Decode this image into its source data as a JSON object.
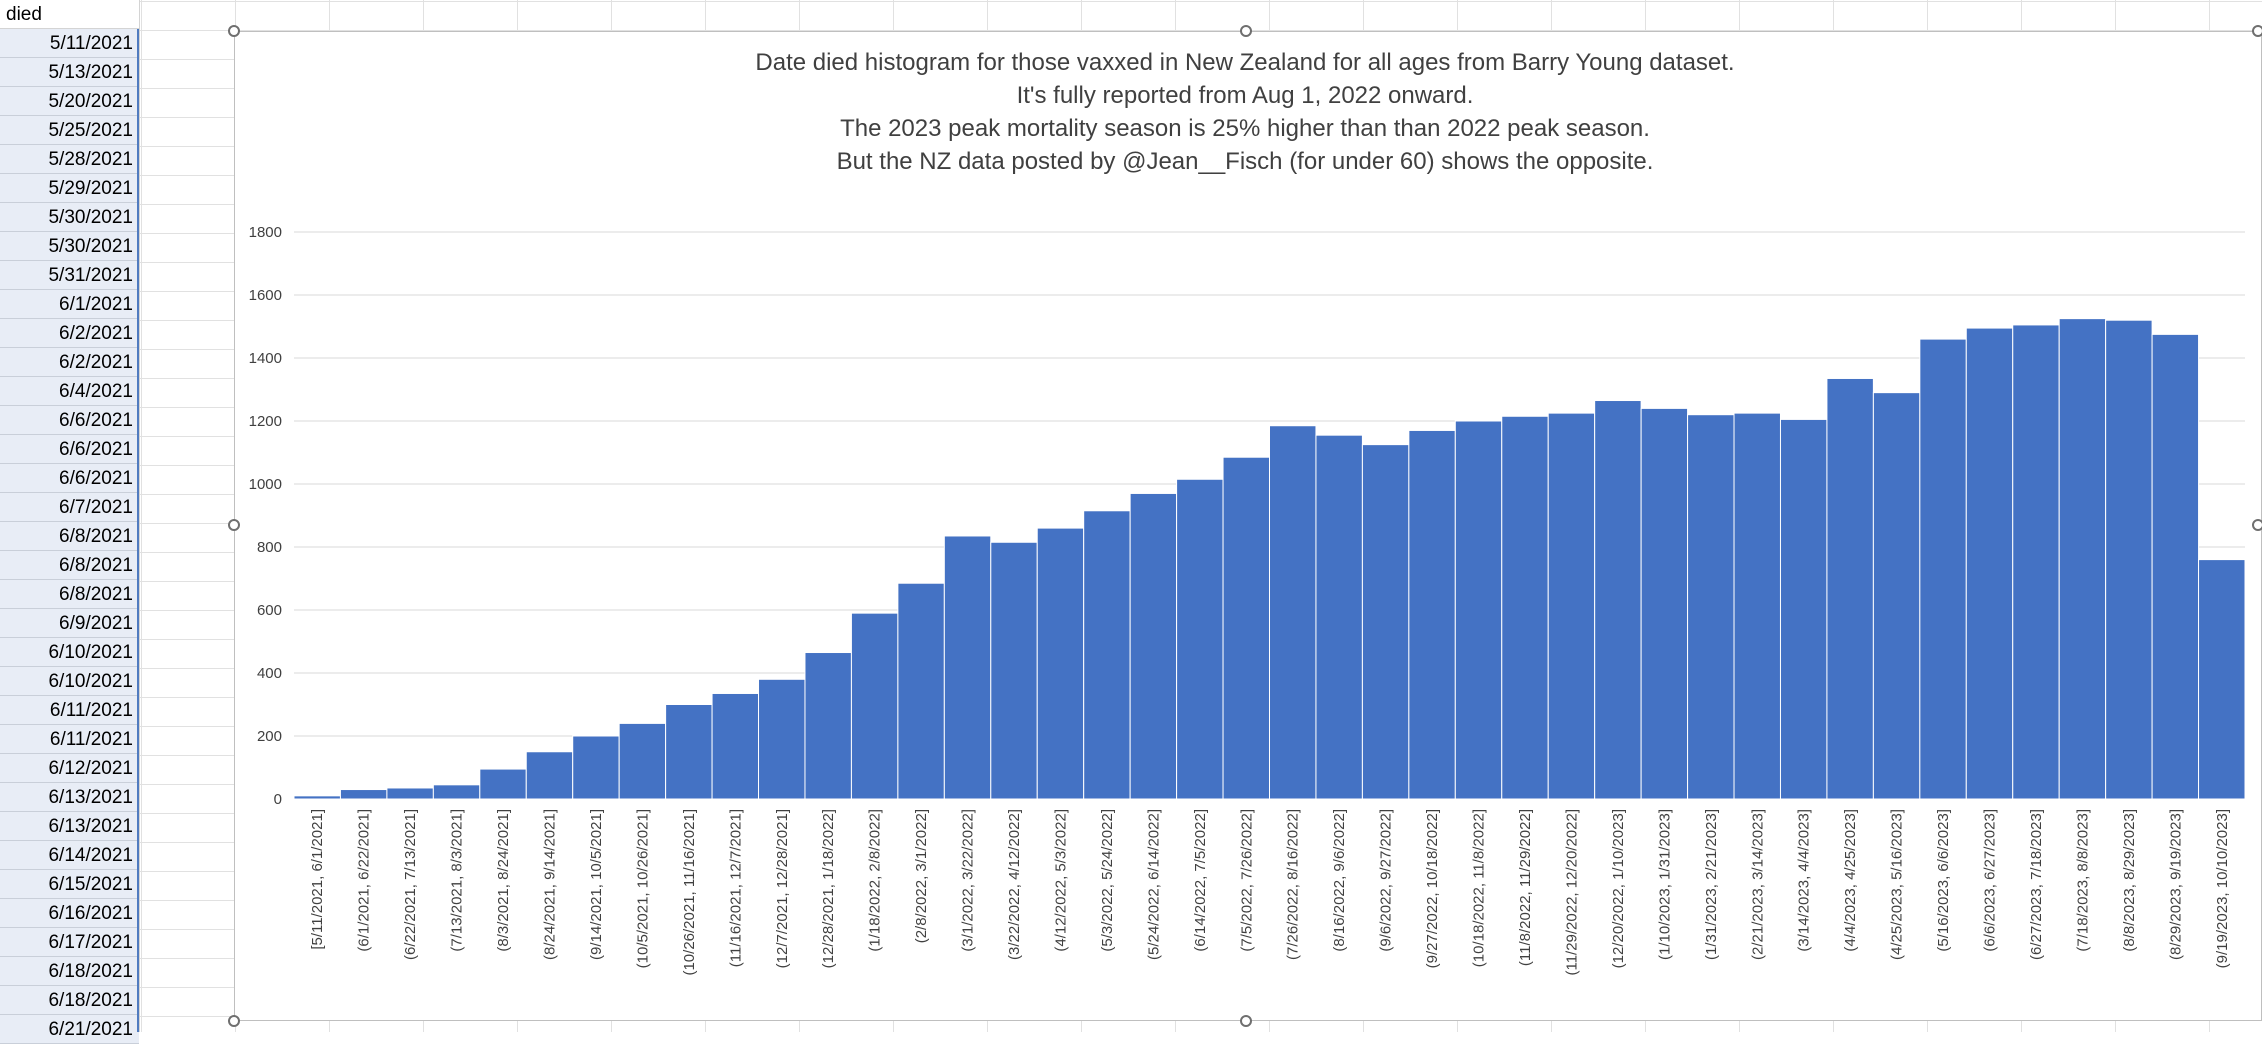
{
  "sheet": {
    "column_header": "died",
    "date_cells": [
      "5/11/2021",
      "5/13/2021",
      "5/20/2021",
      "5/25/2021",
      "5/28/2021",
      "5/29/2021",
      "5/30/2021",
      "5/30/2021",
      "5/31/2021",
      "6/1/2021",
      "6/2/2021",
      "6/2/2021",
      "6/4/2021",
      "6/6/2021",
      "6/6/2021",
      "6/6/2021",
      "6/7/2021",
      "6/8/2021",
      "6/8/2021",
      "6/8/2021",
      "6/9/2021",
      "6/10/2021",
      "6/10/2021",
      "6/11/2021",
      "6/11/2021",
      "6/12/2021",
      "6/13/2021",
      "6/13/2021",
      "6/14/2021",
      "6/15/2021",
      "6/16/2021",
      "6/17/2021",
      "6/18/2021",
      "6/18/2021",
      "6/21/2021"
    ]
  },
  "chart_data": {
    "type": "bar",
    "title_lines": [
      "Date died histogram for those vaxxed in New Zealand for all ages from Barry Young dataset.",
      "It's fully reported from Aug 1, 2022 onward.",
      "The 2023 peak mortality season is 25% higher than than 2022 peak season.",
      "But the NZ data posted by @Jean__Fisch (for under 60) shows the opposite."
    ],
    "xlabel": "",
    "ylabel": "",
    "ylim": [
      0,
      1800
    ],
    "yticks": [
      0,
      200,
      400,
      600,
      800,
      1000,
      1200,
      1400,
      1600,
      1800
    ],
    "grid": true,
    "legend": "none",
    "bar_color": "#4472c4",
    "categories": [
      "[5/11/2021, 6/1/2021]",
      "(6/1/2021, 6/22/2021]",
      "(6/22/2021, 7/13/2021]",
      "(7/13/2021, 8/3/2021]",
      "(8/3/2021, 8/24/2021]",
      "(8/24/2021, 9/14/2021]",
      "(9/14/2021, 10/5/2021]",
      "(10/5/2021, 10/26/2021]",
      "(10/26/2021, 11/16/2021]",
      "(11/16/2021, 12/7/2021]",
      "(12/7/2021, 12/28/2021]",
      "(12/28/2021, 1/18/2022]",
      "(1/18/2022, 2/8/2022]",
      "(2/8/2022, 3/1/2022]",
      "(3/1/2022, 3/22/2022]",
      "(3/22/2022, 4/12/2022]",
      "(4/12/2022, 5/3/2022]",
      "(5/3/2022, 5/24/2022]",
      "(5/24/2022, 6/14/2022]",
      "(6/14/2022, 7/5/2022]",
      "(7/5/2022, 7/26/2022]",
      "(7/26/2022, 8/16/2022]",
      "(8/16/2022, 9/6/2022]",
      "(9/6/2022, 9/27/2022]",
      "(9/27/2022, 10/18/2022]",
      "(10/18/2022, 11/8/2022]",
      "(11/8/2022, 11/29/2022]",
      "(11/29/2022, 12/20/2022]",
      "(12/20/2022, 1/10/2023]",
      "(1/10/2023, 1/31/2023]",
      "(1/31/2023, 2/21/2023]",
      "(2/21/2023, 3/14/2023]",
      "(3/14/2023, 4/4/2023]",
      "(4/4/2023, 4/25/2023]",
      "(4/25/2023, 5/16/2023]",
      "(5/16/2023, 6/6/2023]",
      "(6/6/2023, 6/27/2023]",
      "(6/27/2023, 7/18/2023]",
      "(7/18/2023, 8/8/2023]",
      "(8/8/2023, 8/29/2023]",
      "(8/29/2023, 9/19/2023]",
      "(9/19/2023, 10/10/2023]"
    ],
    "values": [
      10,
      30,
      35,
      45,
      95,
      150,
      200,
      240,
      300,
      335,
      380,
      465,
      590,
      685,
      835,
      815,
      860,
      915,
      970,
      1015,
      1085,
      1185,
      1155,
      1125,
      1170,
      1200,
      1215,
      1225,
      1265,
      1240,
      1220,
      1225,
      1205,
      1335,
      1290,
      1460,
      1495,
      1505,
      1525,
      1520,
      1475,
      760
    ]
  }
}
